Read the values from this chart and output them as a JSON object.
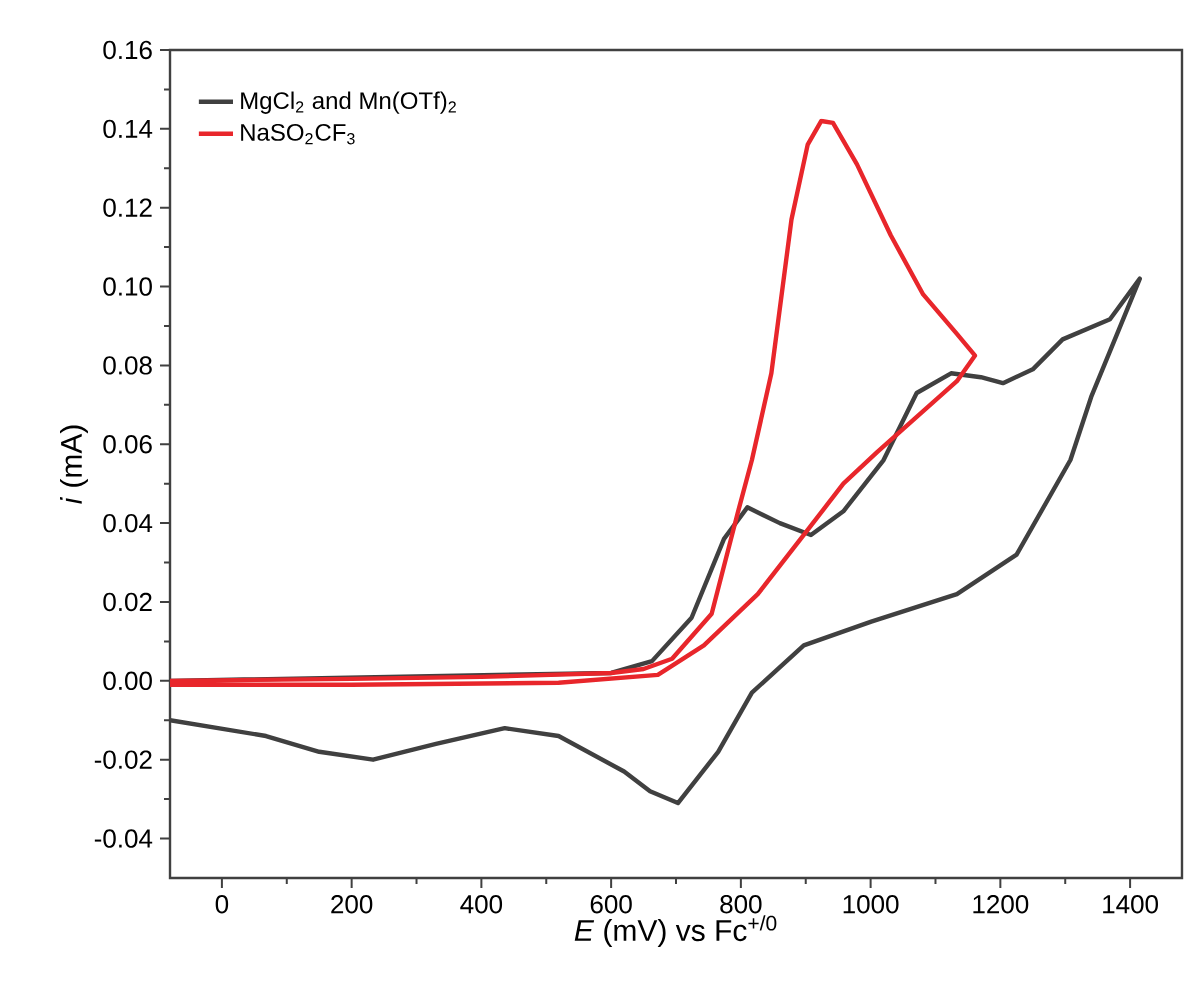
{
  "chart_data": {
    "type": "line",
    "xlabel": "*E* (mV) vs Fc$^{+/0}$",
    "ylabel": "*i* (mA)",
    "xlim": [
      -80,
      1480
    ],
    "ylim": [
      -0.05,
      0.16
    ],
    "xticks": [
      0,
      200,
      400,
      600,
      800,
      1000,
      1200,
      1400
    ],
    "yticks": [
      {
        "value": -0.04,
        "label": "-0.04"
      },
      {
        "value": -0.02,
        "label": "-0.02"
      },
      {
        "value": 0,
        "label": "0.00"
      },
      {
        "value": 0.02,
        "label": "0.02"
      },
      {
        "value": 0.04,
        "label": "0.04"
      },
      {
        "value": 0.06,
        "label": "0.06"
      },
      {
        "value": 0.08,
        "label": "0.08"
      },
      {
        "value": 0.1,
        "label": "0.10"
      },
      {
        "value": 0.12,
        "label": "0.12"
      },
      {
        "value": 0.14,
        "label": "0.14"
      },
      {
        "value": 0.16,
        "label": "0.16"
      }
    ],
    "grid": false,
    "legend": "top left",
    "marker": "none",
    "line_style": "solid",
    "series": [
      {
        "name": "MgCl$_{2}$ and Mn(OTf)$_{2}$",
        "color": "#404040",
        "x": [
          -80,
          200,
          400,
          600,
          663,
          724,
          774,
          810,
          860,
          908,
          958,
          1020,
          1071,
          1124,
          1170,
          1204,
          1250,
          1296,
          1369,
          1415,
          1380,
          1340,
          1308,
          1225,
          1133,
          1001,
          897,
          817,
          765,
          703,
          660,
          620,
          519,
          436,
          330,
          233,
          150,
          68,
          -80
        ],
        "values": [
          0.0,
          null,
          null,
          0.002,
          0.005,
          0.016,
          0.036,
          0.044,
          0.04,
          0.037,
          0.043,
          0.056,
          0.073,
          0.078,
          0.077,
          0.0755,
          0.079,
          0.0866,
          0.0917,
          0.102,
          0.088,
          0.072,
          0.056,
          0.032,
          0.022,
          0.015,
          0.009,
          -0.003,
          -0.018,
          -0.031,
          -0.028,
          -0.023,
          -0.014,
          -0.012,
          -0.016,
          -0.02,
          -0.018,
          -0.014,
          -0.01
        ]
      },
      {
        "name": "NaSO$_{2}$CF$_{3}$",
        "color": "#e8262b",
        "x": [
          -80,
          200,
          400,
          600,
          650,
          694,
          755,
          795,
          817,
          847,
          878,
          903,
          924,
          942,
          979,
          1031,
          1081,
          1133,
          1161,
          1133,
          1010,
          958,
          897,
          826,
          743,
          672,
          519,
          200,
          -80
        ],
        "values": [
          0.0,
          0.0005,
          0.001,
          0.002,
          0.003,
          0.0056,
          0.017,
          0.0425,
          0.056,
          0.078,
          0.117,
          0.136,
          0.142,
          0.1415,
          0.131,
          0.113,
          0.098,
          0.088,
          0.0825,
          0.076,
          0.058,
          0.05,
          0.037,
          0.022,
          0.009,
          0.0015,
          -0.0005,
          -0.001,
          -0.001
        ]
      }
    ]
  }
}
